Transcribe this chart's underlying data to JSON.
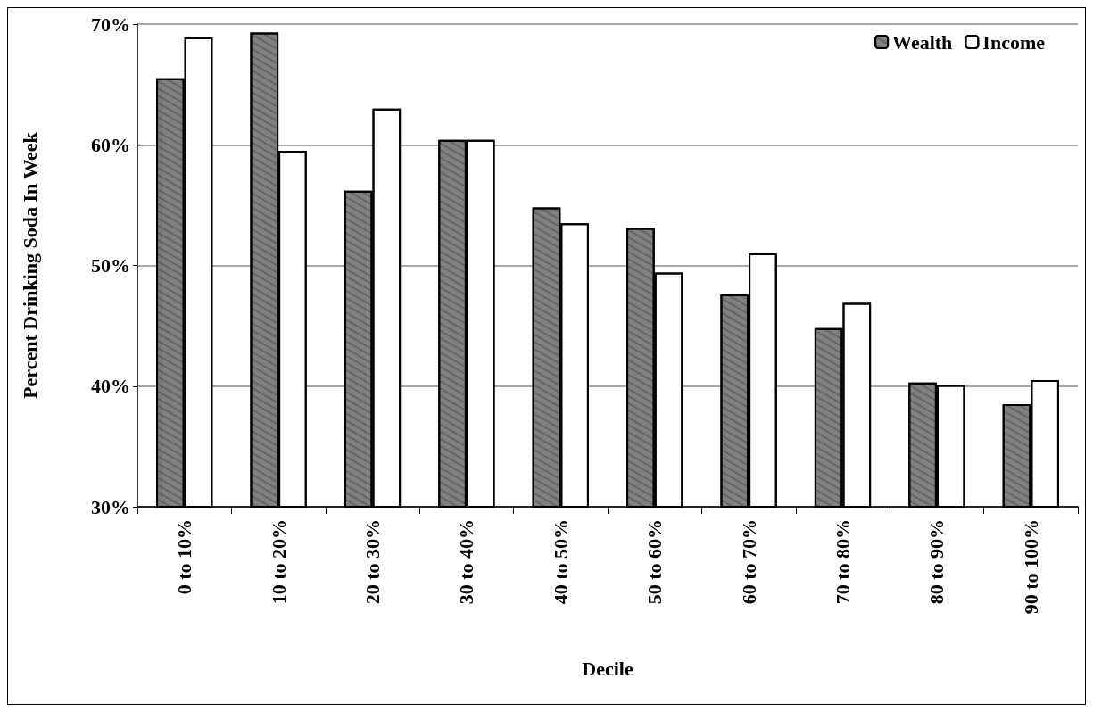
{
  "chart_data": {
    "type": "bar",
    "xlabel": "Decile",
    "ylabel": "Percent Drinking Soda In Week",
    "categories": [
      "0 to 10%",
      "10 to 20%",
      "20 to 30%",
      "30 to 40%",
      "40 to 50%",
      "50 to 60%",
      "60 to 70%",
      "70 to 80%",
      "80 to 90%",
      "90 to 100%"
    ],
    "series": [
      {
        "name": "Wealth",
        "color": "#808080",
        "values": [
          65.5,
          69.3,
          56.2,
          60.4,
          54.8,
          53.1,
          47.6,
          44.8,
          40.3,
          38.5
        ]
      },
      {
        "name": "Income",
        "color": "#ffffff",
        "values": [
          68.9,
          59.5,
          63.0,
          60.4,
          53.5,
          49.4,
          51.0,
          46.9,
          40.1,
          40.5
        ]
      }
    ],
    "ylim": [
      30,
      70
    ],
    "yticks": [
      {
        "value": 30,
        "label": "30%"
      },
      {
        "value": 40,
        "label": "40%"
      },
      {
        "value": 50,
        "label": "50%"
      },
      {
        "value": 60,
        "label": "60%"
      },
      {
        "value": 70,
        "label": "70%"
      }
    ],
    "grid": "y",
    "legend": "top right"
  }
}
